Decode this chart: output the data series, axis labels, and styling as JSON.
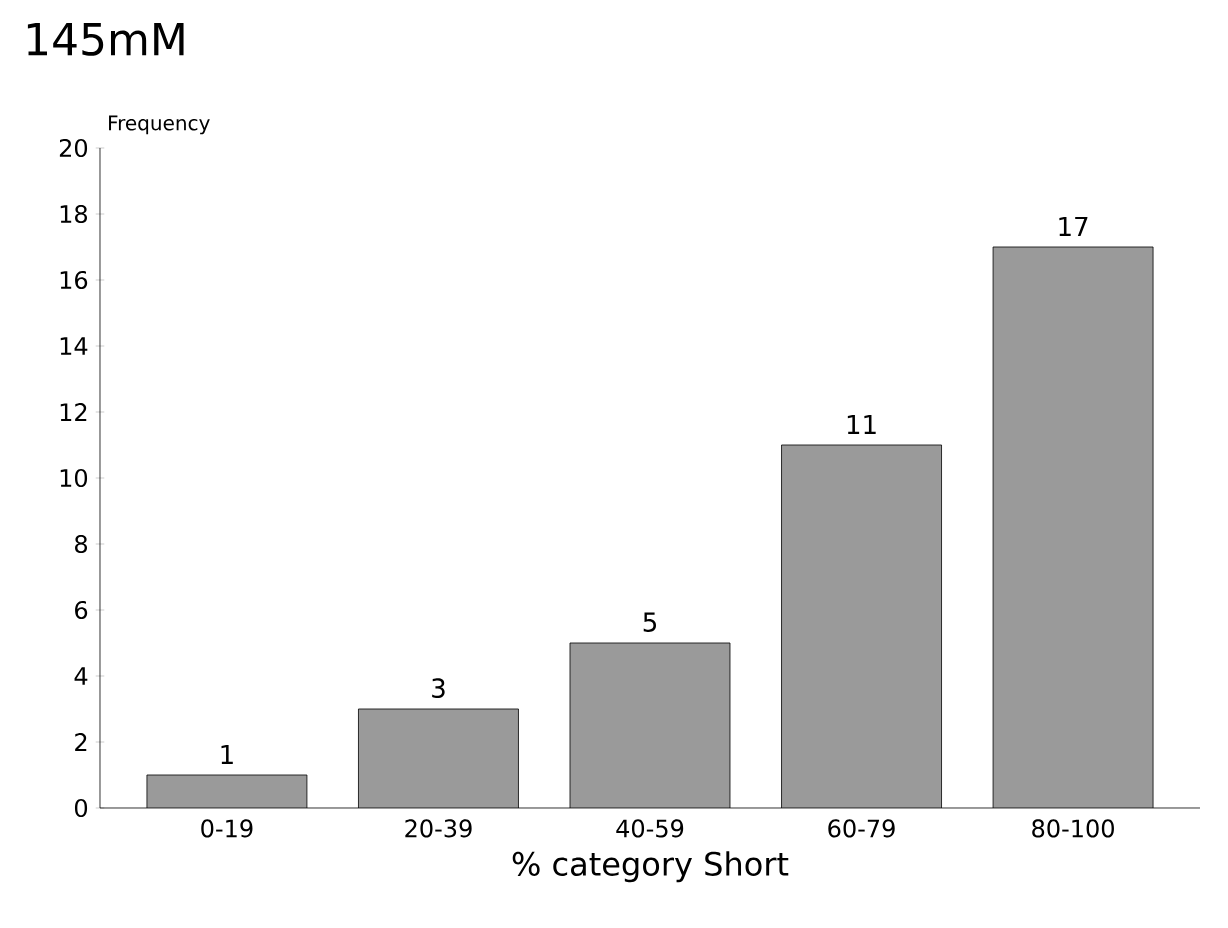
{
  "chart_data": {
    "type": "bar",
    "title": "145mM",
    "ylabel": "Frequency",
    "xlabel": "% category Short",
    "categories": [
      "0-19",
      "20-39",
      "40-59",
      "60-79",
      "80-100"
    ],
    "values": [
      1,
      3,
      5,
      11,
      17
    ],
    "color": "#9a9a9a",
    "ylim": [
      0,
      20
    ],
    "yticks": [
      0,
      2,
      4,
      6,
      8,
      10,
      12,
      14,
      16,
      18,
      20
    ],
    "data_labels": true
  }
}
